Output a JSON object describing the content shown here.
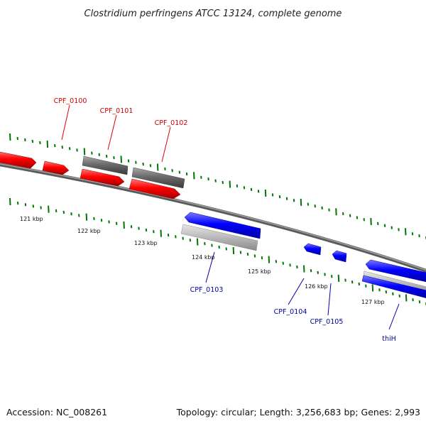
{
  "title": "Clostridium perfringens ATCC 13124, complete genome",
  "footer": {
    "accession": "Accession: NC_008261",
    "summary": "Topology: circular; Length: 3,256,683 bp; Genes: 2,993"
  },
  "colors": {
    "forward": "#ff0000",
    "reverse": "#0000ff",
    "forward_other": "#6e6e6e",
    "reverse_other": "#b8b8b8",
    "ticks": "#007700",
    "backbone": "#777777"
  },
  "kbp_labels": [
    "121 kbp",
    "122 kbp",
    "123 kbp",
    "124 kbp",
    "125 kbp",
    "126 kbp",
    "127 kbp"
  ],
  "genes": [
    {
      "label": "CPF_0100",
      "strand": "forward"
    },
    {
      "label": "CPF_0101",
      "strand": "forward"
    },
    {
      "label": "CPF_0102",
      "strand": "forward"
    },
    {
      "label": "CPF_0103",
      "strand": "reverse"
    },
    {
      "label": "CPF_0104",
      "strand": "reverse"
    },
    {
      "label": "CPF_0105",
      "strand": "reverse"
    },
    {
      "label": "thiH",
      "strand": "reverse"
    }
  ]
}
